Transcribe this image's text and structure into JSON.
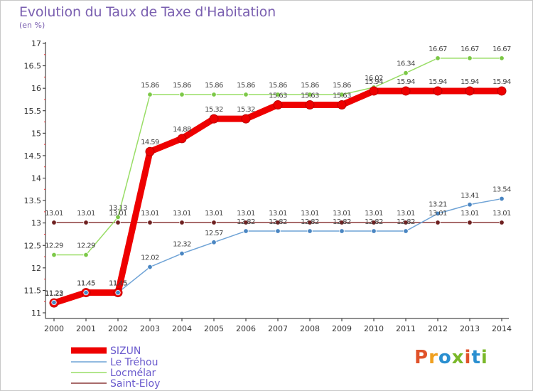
{
  "title": "Evolution du Taux de Taxe d'Habitation",
  "subtitle": "(en %)",
  "logo": {
    "text": "Proxiti",
    "colors": [
      "#e0522a",
      "#f0a020",
      "#2a8fd0",
      "#7ab829",
      "#e0522a",
      "#2a8fd0",
      "#7ab829"
    ]
  },
  "chart_data": {
    "type": "line",
    "title": "Evolution du Taux de Taxe d'Habitation",
    "subtitle": "(en %)",
    "xlabel": "",
    "ylabel": "",
    "x": [
      2000,
      2001,
      2002,
      2003,
      2004,
      2005,
      2006,
      2007,
      2008,
      2009,
      2010,
      2011,
      2012,
      2013,
      2014
    ],
    "yticks": [
      11,
      11.5,
      12,
      12.5,
      13,
      13.5,
      14,
      14.5,
      15,
      15.5,
      16,
      16.5,
      17
    ],
    "ytick_labels": [
      "11",
      "11.5",
      "12",
      "12.5",
      "13",
      "13.5",
      "14",
      "14.5",
      "15",
      "15.5",
      "16",
      "16.5",
      "17"
    ],
    "ylim": [
      11,
      17
    ],
    "grid": false,
    "legend_position": "bottom-left",
    "series": [
      {
        "name": "SIZUN",
        "color": "#ee0000",
        "values": [
          11.22,
          11.45,
          11.45,
          14.59,
          14.88,
          15.32,
          15.32,
          15.63,
          15.63,
          15.63,
          15.94,
          15.94,
          15.94,
          15.94,
          15.94
        ]
      },
      {
        "name": "Le Tréhou",
        "color": "#6fa3d6",
        "values": [
          11.23,
          11.45,
          11.45,
          12.02,
          12.32,
          12.57,
          12.82,
          12.82,
          12.82,
          12.82,
          12.82,
          12.82,
          13.21,
          13.41,
          13.54
        ]
      },
      {
        "name": "Locmélar",
        "color": "#99dd66",
        "values": [
          12.29,
          12.29,
          13.13,
          15.86,
          15.86,
          15.86,
          15.86,
          15.86,
          15.86,
          15.86,
          16.02,
          16.34,
          16.67,
          16.67,
          16.67
        ]
      },
      {
        "name": "Saint-Eloy",
        "color": "#8b3a3a",
        "values": [
          13.01,
          13.01,
          13.01,
          13.01,
          13.01,
          13.01,
          13.01,
          13.01,
          13.01,
          13.01,
          13.01,
          13.01,
          13.01,
          13.01,
          13.01
        ]
      }
    ]
  }
}
